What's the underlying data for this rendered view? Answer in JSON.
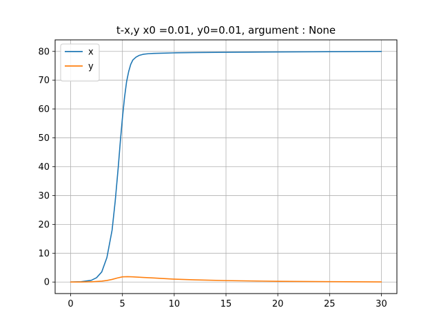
{
  "chart_data": {
    "type": "line",
    "title": "t-x,y x0 =0.01, y0=0.01, argument : None",
    "xlabel": "",
    "ylabel": "",
    "xlim": [
      -1.5,
      31.5
    ],
    "ylim": [
      -4,
      84
    ],
    "xticks": [
      0,
      5,
      10,
      15,
      20,
      25,
      30
    ],
    "yticks": [
      0,
      10,
      20,
      30,
      40,
      50,
      60,
      70,
      80
    ],
    "grid": true,
    "legend_position": "top-left",
    "series": [
      {
        "name": "x",
        "color": "#1f77b4",
        "x": [
          0,
          1,
          2,
          2.5,
          3,
          3.5,
          4,
          4.3,
          4.6,
          4.8,
          5.0,
          5.2,
          5.4,
          5.6,
          5.8,
          6.0,
          6.3,
          6.6,
          7.0,
          7.5,
          8,
          9,
          10,
          12,
          15,
          20,
          25,
          30
        ],
        "y": [
          0.01,
          0.1,
          0.6,
          1.5,
          3.5,
          8.5,
          18,
          28,
          40,
          49,
          57,
          64,
          69.5,
          73,
          75.5,
          77,
          78,
          78.6,
          79.0,
          79.2,
          79.3,
          79.4,
          79.5,
          79.6,
          79.7,
          79.8,
          79.9,
          80.0
        ]
      },
      {
        "name": "y",
        "color": "#ff7f0e",
        "x": [
          0,
          1,
          2,
          3,
          3.5,
          4,
          4.5,
          5,
          5.5,
          6,
          7,
          8,
          10,
          12,
          15,
          20,
          25,
          30
        ],
        "y": [
          0.01,
          0.02,
          0.08,
          0.3,
          0.55,
          0.9,
          1.4,
          1.8,
          1.85,
          1.8,
          1.6,
          1.4,
          1.0,
          0.75,
          0.5,
          0.25,
          0.12,
          0.05
        ]
      }
    ]
  }
}
